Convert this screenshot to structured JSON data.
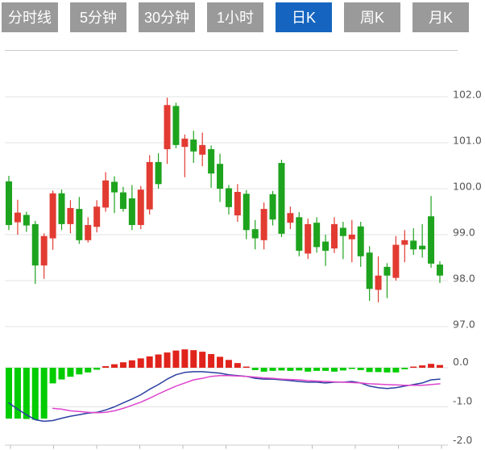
{
  "toolbar": {
    "tabs": [
      {
        "label": "分时线",
        "active": false
      },
      {
        "label": "5分钟",
        "active": false
      },
      {
        "label": "30分钟",
        "active": false
      },
      {
        "label": "1小时",
        "active": false
      },
      {
        "label": "日K",
        "active": true
      },
      {
        "label": "周K",
        "active": false
      },
      {
        "label": "月K",
        "active": false
      }
    ]
  },
  "colors": {
    "tab_bg": "#9a9a9a",
    "tab_active_bg": "#1565c0",
    "tab_text": "#ffffff",
    "up_candle": "#e23b32",
    "down_candle": "#1ea31e",
    "hist_up": "#e0241c",
    "hist_down": "#00cc00",
    "dif_line": "#2a3fa0",
    "dea_line": "#dd44cc",
    "gridline": "#e3e3e3",
    "axis_line": "#cccccc",
    "axis_label": "#555555"
  },
  "chart_data": {
    "type": "candlestick",
    "interval_selected": "日K",
    "price_axis": {
      "side": "right",
      "ticks": [
        {
          "label": "102.0",
          "value": 102.0
        },
        {
          "label": "101.0",
          "value": 101.0
        },
        {
          "label": "100.0",
          "value": 100.0
        },
        {
          "label": "99.0",
          "value": 99.0
        },
        {
          "label": "98.0",
          "value": 98.0
        },
        {
          "label": "97.0",
          "value": 97.0
        }
      ]
    },
    "indicator_axis": {
      "ticks": [
        {
          "label": "0.0",
          "value": 0.0
        },
        {
          "label": "-1.0",
          "value": -1.0
        },
        {
          "label": "-2.0",
          "value": -2.0
        }
      ]
    },
    "candles": [
      {
        "open": 100.16,
        "high": 100.28,
        "low": 99.1,
        "close": 99.21
      },
      {
        "open": 99.27,
        "high": 99.76,
        "low": 99.0,
        "close": 99.48
      },
      {
        "open": 99.43,
        "high": 99.5,
        "low": 99.06,
        "close": 99.2
      },
      {
        "open": 99.23,
        "high": 99.3,
        "low": 97.93,
        "close": 98.33
      },
      {
        "open": 98.33,
        "high": 99.03,
        "low": 98.04,
        "close": 98.97
      },
      {
        "open": 98.92,
        "high": 99.96,
        "low": 98.67,
        "close": 99.9
      },
      {
        "open": 99.9,
        "high": 99.98,
        "low": 99.1,
        "close": 99.23
      },
      {
        "open": 99.23,
        "high": 99.75,
        "low": 99.03,
        "close": 99.58
      },
      {
        "open": 99.56,
        "high": 99.82,
        "low": 98.8,
        "close": 98.88
      },
      {
        "open": 98.88,
        "high": 99.38,
        "low": 98.83,
        "close": 99.21
      },
      {
        "open": 99.17,
        "high": 99.75,
        "low": 99.05,
        "close": 99.61
      },
      {
        "open": 99.59,
        "high": 100.36,
        "low": 99.5,
        "close": 100.18
      },
      {
        "open": 100.15,
        "high": 100.27,
        "low": 99.47,
        "close": 99.92
      },
      {
        "open": 99.92,
        "high": 100.04,
        "low": 99.5,
        "close": 99.56
      },
      {
        "open": 99.79,
        "high": 100.08,
        "low": 99.1,
        "close": 99.21
      },
      {
        "open": 99.21,
        "high": 100.06,
        "low": 99.12,
        "close": 99.98
      },
      {
        "open": 99.55,
        "high": 100.73,
        "low": 99.44,
        "close": 100.58
      },
      {
        "open": 100.58,
        "high": 100.77,
        "low": 100.0,
        "close": 100.1
      },
      {
        "open": 100.86,
        "high": 101.98,
        "low": 100.54,
        "close": 101.82
      },
      {
        "open": 101.8,
        "high": 101.87,
        "low": 100.88,
        "close": 100.95
      },
      {
        "open": 100.91,
        "high": 101.18,
        "low": 100.25,
        "close": 101.09
      },
      {
        "open": 101.07,
        "high": 101.26,
        "low": 100.56,
        "close": 100.81
      },
      {
        "open": 100.74,
        "high": 101.22,
        "low": 100.49,
        "close": 100.95
      },
      {
        "open": 100.86,
        "high": 100.94,
        "low": 100.02,
        "close": 100.33
      },
      {
        "open": 100.54,
        "high": 100.76,
        "low": 99.71,
        "close": 100.0
      },
      {
        "open": 100.01,
        "high": 100.08,
        "low": 99.44,
        "close": 99.6
      },
      {
        "open": 99.42,
        "high": 100.1,
        "low": 99.28,
        "close": 99.93
      },
      {
        "open": 99.89,
        "high": 99.97,
        "low": 98.9,
        "close": 99.1
      },
      {
        "open": 99.12,
        "high": 99.32,
        "low": 98.68,
        "close": 98.92
      },
      {
        "open": 98.88,
        "high": 99.7,
        "low": 98.68,
        "close": 99.56
      },
      {
        "open": 99.88,
        "high": 99.95,
        "low": 99.2,
        "close": 99.33
      },
      {
        "open": 100.56,
        "high": 100.63,
        "low": 98.95,
        "close": 99.02
      },
      {
        "open": 99.26,
        "high": 99.61,
        "low": 99.12,
        "close": 99.47
      },
      {
        "open": 99.38,
        "high": 99.49,
        "low": 98.53,
        "close": 98.65
      },
      {
        "open": 98.59,
        "high": 99.35,
        "low": 98.47,
        "close": 99.23
      },
      {
        "open": 99.26,
        "high": 99.38,
        "low": 98.61,
        "close": 98.73
      },
      {
        "open": 98.85,
        "high": 99.0,
        "low": 98.32,
        "close": 98.65
      },
      {
        "open": 98.7,
        "high": 99.38,
        "low": 98.6,
        "close": 99.23
      },
      {
        "open": 99.15,
        "high": 99.28,
        "low": 98.47,
        "close": 98.97
      },
      {
        "open": 98.9,
        "high": 99.32,
        "low": 98.4,
        "close": 99.0
      },
      {
        "open": 99.18,
        "high": 99.28,
        "low": 98.3,
        "close": 98.53
      },
      {
        "open": 98.61,
        "high": 98.75,
        "low": 97.56,
        "close": 97.82
      },
      {
        "open": 97.8,
        "high": 98.53,
        "low": 97.53,
        "close": 98.11
      },
      {
        "open": 98.3,
        "high": 98.38,
        "low": 97.62,
        "close": 98.11
      },
      {
        "open": 98.06,
        "high": 98.97,
        "low": 98.0,
        "close": 98.78
      },
      {
        "open": 98.78,
        "high": 99.1,
        "low": 98.4,
        "close": 98.88
      },
      {
        "open": 98.87,
        "high": 99.14,
        "low": 98.56,
        "close": 98.68
      },
      {
        "open": 98.76,
        "high": 99.23,
        "low": 98.5,
        "close": 98.68
      },
      {
        "open": 99.4,
        "high": 99.84,
        "low": 98.28,
        "close": 98.37
      },
      {
        "open": 98.35,
        "high": 98.42,
        "low": 97.95,
        "close": 98.11
      }
    ],
    "indicator": {
      "name": "MACD",
      "histogram": [
        -1.3,
        -1.3,
        -1.31,
        -1.33,
        -1.3,
        -0.4,
        -0.3,
        -0.23,
        -0.17,
        -0.12,
        -0.05,
        0.04,
        0.09,
        0.14,
        0.19,
        0.24,
        0.29,
        0.34,
        0.39,
        0.44,
        0.47,
        0.45,
        0.41,
        0.35,
        0.28,
        0.2,
        0.12,
        0.03,
        -0.06,
        -0.1,
        -0.08,
        -0.07,
        -0.08,
        -0.07,
        -0.1,
        -0.08,
        -0.08,
        -0.1,
        -0.07,
        -0.03,
        -0.06,
        -0.11,
        -0.11,
        -0.12,
        -0.12,
        -0.04,
        0.03,
        0.06,
        0.1,
        0.07
      ],
      "dif": [
        -0.9,
        -1.06,
        -1.2,
        -1.33,
        -1.37,
        -1.35,
        -1.29,
        -1.24,
        -1.2,
        -1.16,
        -1.14,
        -1.08,
        -1.0,
        -0.9,
        -0.8,
        -0.69,
        -0.55,
        -0.43,
        -0.29,
        -0.18,
        -0.12,
        -0.1,
        -0.1,
        -0.12,
        -0.14,
        -0.18,
        -0.2,
        -0.22,
        -0.27,
        -0.29,
        -0.29,
        -0.31,
        -0.33,
        -0.35,
        -0.37,
        -0.37,
        -0.39,
        -0.37,
        -0.37,
        -0.35,
        -0.39,
        -0.47,
        -0.51,
        -0.53,
        -0.51,
        -0.47,
        -0.43,
        -0.39,
        -0.31,
        -0.29
      ],
      "dea": [
        null,
        null,
        null,
        null,
        null,
        -1.04,
        -1.06,
        -1.1,
        -1.12,
        -1.14,
        -1.15,
        -1.14,
        -1.1,
        -1.04,
        -0.96,
        -0.88,
        -0.78,
        -0.67,
        -0.57,
        -0.47,
        -0.39,
        -0.31,
        -0.27,
        -0.22,
        -0.2,
        -0.2,
        -0.21,
        -0.22,
        -0.24,
        -0.26,
        -0.27,
        -0.29,
        -0.3,
        -0.31,
        -0.33,
        -0.34,
        -0.35,
        -0.36,
        -0.37,
        -0.38,
        -0.39,
        -0.41,
        -0.42,
        -0.43,
        -0.44,
        -0.45,
        -0.45,
        -0.45,
        -0.43,
        -0.41
      ]
    }
  }
}
